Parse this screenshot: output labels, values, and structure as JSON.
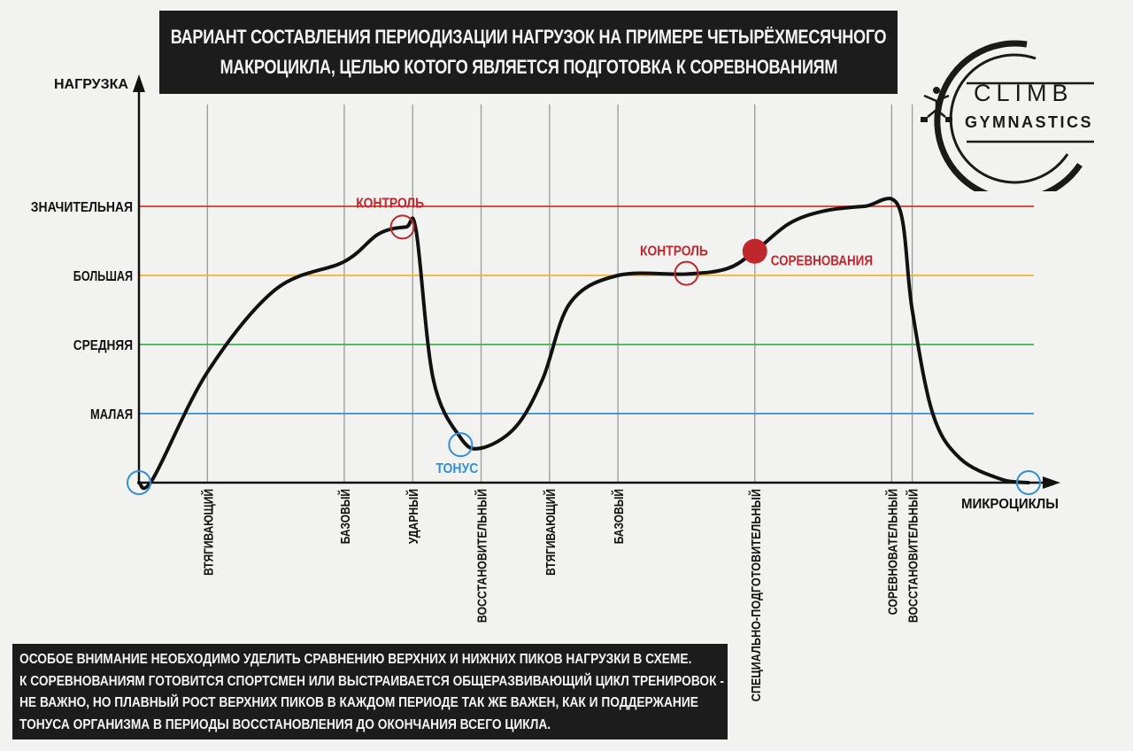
{
  "title": {
    "line1": "ВАРИАНТ СОСТАВЛЕНИЯ ПЕРИОДИЗАЦИИ НАГРУЗОК НА ПРИМЕРЕ ЧЕТЫРЁХМЕСЯЧНОГО",
    "line2": "МАКРОЦИКЛА, ЦЕЛЬЮ КОТОГО ЯВЛЯЕТСЯ ПОДГОТОВКА К СОРЕВНОВАНИЯМ"
  },
  "logo": {
    "text1": "CLIMB",
    "text2": "GYMNASTICS",
    "icon": "athlete-figure-icon",
    "color": "#1a1a1a"
  },
  "note": {
    "lines": [
      "ОСОБОЕ ВНИМАНИЕ НЕОБХОДИМО УДЕЛИТЬ СРАВНЕНИЮ ВЕРХНИХ И НИЖНИХ ПИКОВ НАГРУЗКИ В СХЕМЕ.",
      "К СОРЕВНОВАНИЯМ ГОТОВИТСЯ СПОРТСМЕН ИЛИ ВЫСТРАИВАЕТСЯ ОБЩЕРАЗВИВАЮЩИЙ ЦИКЛ ТРЕНИРОВОК -",
      "НЕ ВАЖНО, НО ПЛАВНЫЙ РОСТ ВЕРХНИХ ПИКОВ В КАЖДОМ ПЕРИОДЕ ТАК ЖЕ ВАЖЕН, КАК И ПОДДЕРЖАНИЕ",
      "ТОНУСА ОРГАНИЗМА В ПЕРИОДЫ ВОССТАНОВЛЕНИЯ ДО ОКОНЧАНИЯ ВСЕГО ЦИКЛА."
    ]
  },
  "chart_data": {
    "type": "line",
    "title": "ВАРИАНТ СОСТАВЛЕНИЯ ПЕРИОДИЗАЦИИ НАГРУЗОК НА ПРИМЕРЕ ЧЕТЫРЁХМЕСЯЧНОГО МАКРОЦИКЛА, ЦЕЛЬЮ КОТОГО ЯВЛЯЕТСЯ ПОДГОТОВКА К СОРЕВНОВАНИЯМ",
    "ylabel": "НАГРУЗКА",
    "xlabel": "МИКРОЦИКЛЫ",
    "ylim": [
      0,
      5.4
    ],
    "xlim": [
      0,
      13
    ],
    "levels": [
      {
        "label": "МАЛАЯ",
        "value": 1,
        "color": "#2f8fd8"
      },
      {
        "label": "СРЕДНЯЯ",
        "value": 2,
        "color": "#3db34a"
      },
      {
        "label": "БОЛЬШАЯ",
        "value": 3,
        "color": "#f0b429"
      },
      {
        "label": "ЗНАЧИТЕЛЬНАЯ",
        "value": 4,
        "color": "#d9362b"
      }
    ],
    "microcycles": [
      {
        "label": "ВТЯГИВАЮЩИЙ",
        "x": 1.0
      },
      {
        "label": "БАЗОВЫЙ",
        "x": 3.0
      },
      {
        "label": "УДАРНЫЙ",
        "x": 4.0
      },
      {
        "label": "ВОССТАНОВИТЕЛЬНЫЙ",
        "x": 5.0
      },
      {
        "label": "ВТЯГИВАЮЩИЙ",
        "x": 6.0
      },
      {
        "label": "БАЗОВЫЙ",
        "x": 7.0
      },
      {
        "label": "СПЕЦИАЛЬНО-ПОДГОТОВИТЕЛЬНЫЙ",
        "x": 9.0
      },
      {
        "label": "СОРЕВНОВАТЕЛЬНЫЙ",
        "x": 11.0
      },
      {
        "label": "ВОССТАНОВИТЕЛЬНЫЙ",
        "x": 11.3
      }
    ],
    "curve": {
      "x": [
        0,
        0.2,
        1.0,
        2.0,
        3.0,
        3.5,
        3.9,
        4.05,
        4.3,
        4.7,
        5.0,
        5.5,
        5.9,
        6.3,
        7.0,
        8.0,
        8.6,
        9.0,
        9.5,
        10.0,
        10.6,
        11.1,
        11.3,
        11.6,
        12.0,
        12.6,
        13.0
      ],
      "y": [
        0,
        0.05,
        1.6,
        2.8,
        3.2,
        3.6,
        3.7,
        3.65,
        1.5,
        0.65,
        0.5,
        0.8,
        1.5,
        2.6,
        3.0,
        3.02,
        3.1,
        3.35,
        3.75,
        3.93,
        4.0,
        4.0,
        2.5,
        1.0,
        0.35,
        0.05,
        0.0
      ]
    },
    "markers": [
      {
        "name": "start",
        "x": 0,
        "y": 0,
        "label": "",
        "color": "#2f8fd8",
        "filled": false
      },
      {
        "name": "control-1",
        "x": 3.85,
        "y": 3.7,
        "label": "КОНТРОЛЬ",
        "color": "#c0272d",
        "filled": false
      },
      {
        "name": "tonus",
        "x": 4.7,
        "y": 0.55,
        "label": "ТОНУС",
        "color": "#2f8fd8",
        "filled": false
      },
      {
        "name": "control-2",
        "x": 8.0,
        "y": 3.03,
        "label": "КОНТРОЛЬ",
        "color": "#c0272d",
        "filled": false
      },
      {
        "name": "competition",
        "x": 9.0,
        "y": 3.35,
        "label": "СОРЕВНОВАНИЯ",
        "color": "#c0272d",
        "filled": true
      },
      {
        "name": "end",
        "x": 13.0,
        "y": 0,
        "label": "",
        "color": "#2f8fd8",
        "filled": false
      }
    ]
  }
}
